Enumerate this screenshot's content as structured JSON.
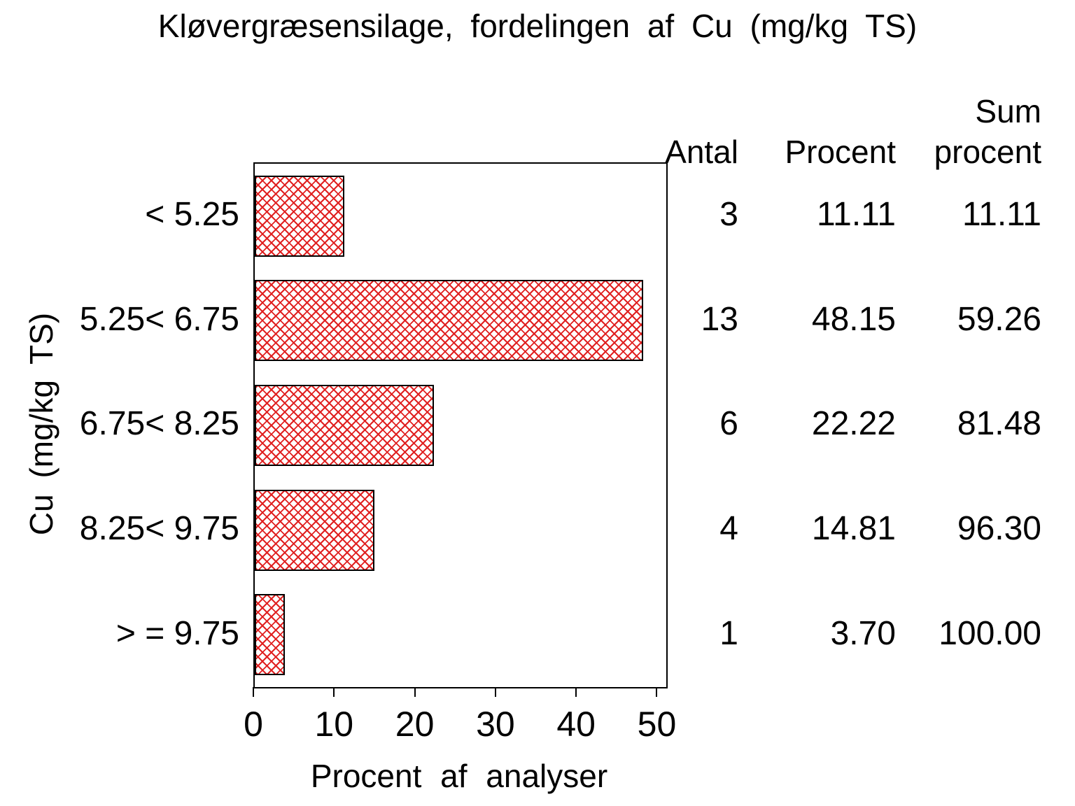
{
  "chart_data": {
    "type": "bar",
    "orientation": "horizontal",
    "title": "Kløvergræsensilage, fordelingen af Cu (mg/kg TS)",
    "xlabel": "Procent af analyser",
    "ylabel": "Cu (mg/kg TS)",
    "categories": [
      "< 5.25",
      "5.25< 6.75",
      "6.75< 8.25",
      "8.25< 9.75",
      "> = 9.75"
    ],
    "values": [
      11.11,
      48.15,
      22.22,
      14.81,
      3.7
    ],
    "xticks": [
      0,
      10,
      20,
      30,
      40,
      50
    ],
    "xlim": [
      0,
      51
    ],
    "grid": false,
    "legend": "none",
    "bar_fill_color": "#e02020",
    "bar_border_color": "#000000",
    "bar_pattern": "crosshatch",
    "table": {
      "headers": [
        "Antal",
        "Procent",
        "Sum\nprocent"
      ],
      "rows": [
        [
          "3",
          "11.11",
          "11.11"
        ],
        [
          "13",
          "48.15",
          "59.26"
        ],
        [
          "6",
          "22.22",
          "81.48"
        ],
        [
          "4",
          "14.81",
          "96.30"
        ],
        [
          "1",
          "3.70",
          "100.00"
        ]
      ]
    }
  }
}
